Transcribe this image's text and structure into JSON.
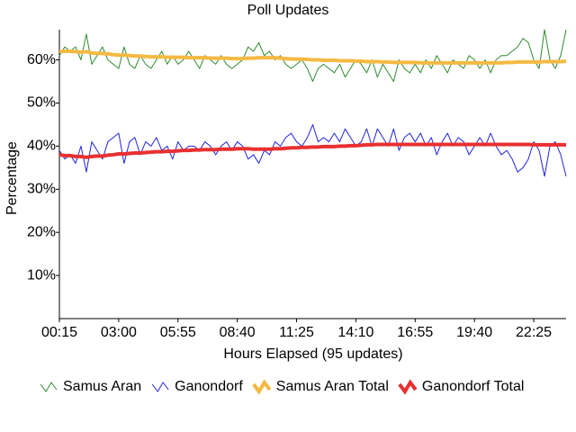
{
  "chart_data": {
    "type": "line",
    "title": "Poll Updates",
    "xlabel": "Hours Elapsed (95 updates)",
    "ylabel": "Percentage",
    "xlim": [
      0,
      94
    ],
    "xticks": [
      {
        "value": 0,
        "label": "00:15"
      },
      {
        "value": 11,
        "label": "03:00"
      },
      {
        "value": 22,
        "label": "05:55"
      },
      {
        "value": 33,
        "label": "08:40"
      },
      {
        "value": 44,
        "label": "11:25"
      },
      {
        "value": 55,
        "label": "14:10"
      },
      {
        "value": 66,
        "label": "16:55"
      },
      {
        "value": 77,
        "label": "19:40"
      },
      {
        "value": 88,
        "label": "22:25"
      }
    ],
    "ylim": [
      0,
      67
    ],
    "yticks": [
      {
        "value": 10,
        "label": "10%"
      },
      {
        "value": 20,
        "label": "20%"
      },
      {
        "value": 30,
        "label": "30%"
      },
      {
        "value": 40,
        "label": "40%"
      },
      {
        "value": 50,
        "label": "50%"
      },
      {
        "value": 60,
        "label": "60%"
      }
    ],
    "series": [
      {
        "name": "Samus Aran",
        "color": "#2e8b2e",
        "width": 1,
        "values": [
          61,
          63,
          62,
          63,
          60,
          66,
          59,
          61,
          63,
          60,
          59,
          58,
          63,
          59,
          58,
          61,
          59,
          58,
          60,
          62,
          59,
          61,
          59,
          60,
          62,
          60,
          58,
          61,
          60,
          59,
          61,
          59,
          58,
          59,
          60,
          63,
          62,
          64,
          61,
          62,
          60,
          61,
          59,
          58,
          59,
          60,
          58,
          55,
          58,
          59,
          58,
          57,
          59,
          56,
          58,
          60,
          59,
          57,
          60,
          56,
          59,
          57,
          55,
          60,
          58,
          57,
          59,
          57,
          60,
          58,
          61,
          59,
          57,
          60,
          59,
          58,
          61,
          60,
          58,
          60,
          57,
          60,
          61,
          61,
          62,
          63,
          65,
          64,
          60,
          58,
          67,
          60,
          58,
          61,
          67
        ]
      },
      {
        "name": "Ganondorf",
        "color": "#2424e0",
        "width": 1,
        "values": [
          39,
          37,
          38,
          36,
          40,
          34,
          41,
          39,
          37,
          41,
          42,
          43,
          36,
          41,
          42,
          38,
          41,
          40,
          42,
          39,
          40,
          37,
          41,
          39,
          40,
          40,
          39,
          41,
          40,
          38,
          40,
          41,
          39,
          41,
          40,
          37,
          38,
          36,
          39,
          38,
          41,
          40,
          42,
          43,
          41,
          40,
          42,
          45,
          41,
          42,
          41,
          43,
          41,
          44,
          42,
          40,
          41,
          44,
          40,
          44,
          42,
          40,
          44,
          39,
          42,
          43,
          41,
          43,
          40,
          42,
          38,
          41,
          43,
          40,
          42,
          41,
          38,
          40,
          42,
          40,
          43,
          40,
          38,
          39,
          37,
          34,
          35,
          37,
          41,
          39,
          33,
          40,
          41,
          38,
          33
        ]
      },
      {
        "name": "Samus Aran Total",
        "color": "#f5b942",
        "width": 4,
        "values": [
          62,
          62,
          62,
          61.9,
          61.8,
          61.9,
          61.6,
          61.5,
          61.5,
          61.4,
          61.2,
          61.1,
          61.1,
          61,
          60.9,
          60.9,
          60.8,
          60.7,
          60.7,
          60.7,
          60.6,
          60.6,
          60.6,
          60.6,
          60.5,
          60.5,
          60.5,
          60.5,
          60.4,
          60.4,
          60.4,
          60.4,
          60.3,
          60.3,
          60.3,
          60.4,
          60.4,
          60.5,
          60.5,
          60.5,
          60.5,
          60.4,
          60.3,
          60.2,
          60.2,
          60.2,
          60.1,
          60,
          60,
          59.9,
          59.9,
          59.9,
          59.8,
          59.8,
          59.8,
          59.7,
          59.7,
          59.6,
          59.6,
          59.6,
          59.5,
          59.5,
          59.4,
          59.4,
          59.4,
          59.4,
          59.4,
          59.3,
          59.3,
          59.3,
          59.3,
          59.3,
          59.3,
          59.3,
          59.3,
          59.3,
          59.3,
          59.3,
          59.3,
          59.3,
          59.3,
          59.3,
          59.3,
          59.4,
          59.4,
          59.5,
          59.5,
          59.5,
          59.5,
          59.5,
          59.6,
          59.6,
          59.6,
          59.6,
          59.7
        ]
      },
      {
        "name": "Ganondorf Total",
        "color": "#e83030",
        "width": 4,
        "values": [
          38,
          37.8,
          37.8,
          37.6,
          37.6,
          37.4,
          37.6,
          37.7,
          37.7,
          37.9,
          38,
          38.2,
          38.2,
          38.3,
          38.4,
          38.4,
          38.5,
          38.6,
          38.7,
          38.7,
          38.8,
          38.8,
          38.9,
          39,
          39,
          39.1,
          39.1,
          39.2,
          39.2,
          39.2,
          39.3,
          39.3,
          39.3,
          39.4,
          39.4,
          39.4,
          39.3,
          39.3,
          39.3,
          39.3,
          39.4,
          39.4,
          39.5,
          39.6,
          39.6,
          39.7,
          39.7,
          39.8,
          39.8,
          39.9,
          39.9,
          39.9,
          40,
          40,
          40.1,
          40.1,
          40.2,
          40.3,
          40.3,
          40.4,
          40.4,
          40.4,
          40.4,
          40.4,
          40.4,
          40.4,
          40.4,
          40.4,
          40.4,
          40.4,
          40.4,
          40.4,
          40.4,
          40.4,
          40.4,
          40.4,
          40.4,
          40.4,
          40.4,
          40.4,
          40.4,
          40.4,
          40.4,
          40.4,
          40.4,
          40.4,
          40.4,
          40.4,
          40.3,
          40.3,
          40.3,
          40.3,
          40.3,
          40.3,
          40.3
        ]
      }
    ]
  }
}
